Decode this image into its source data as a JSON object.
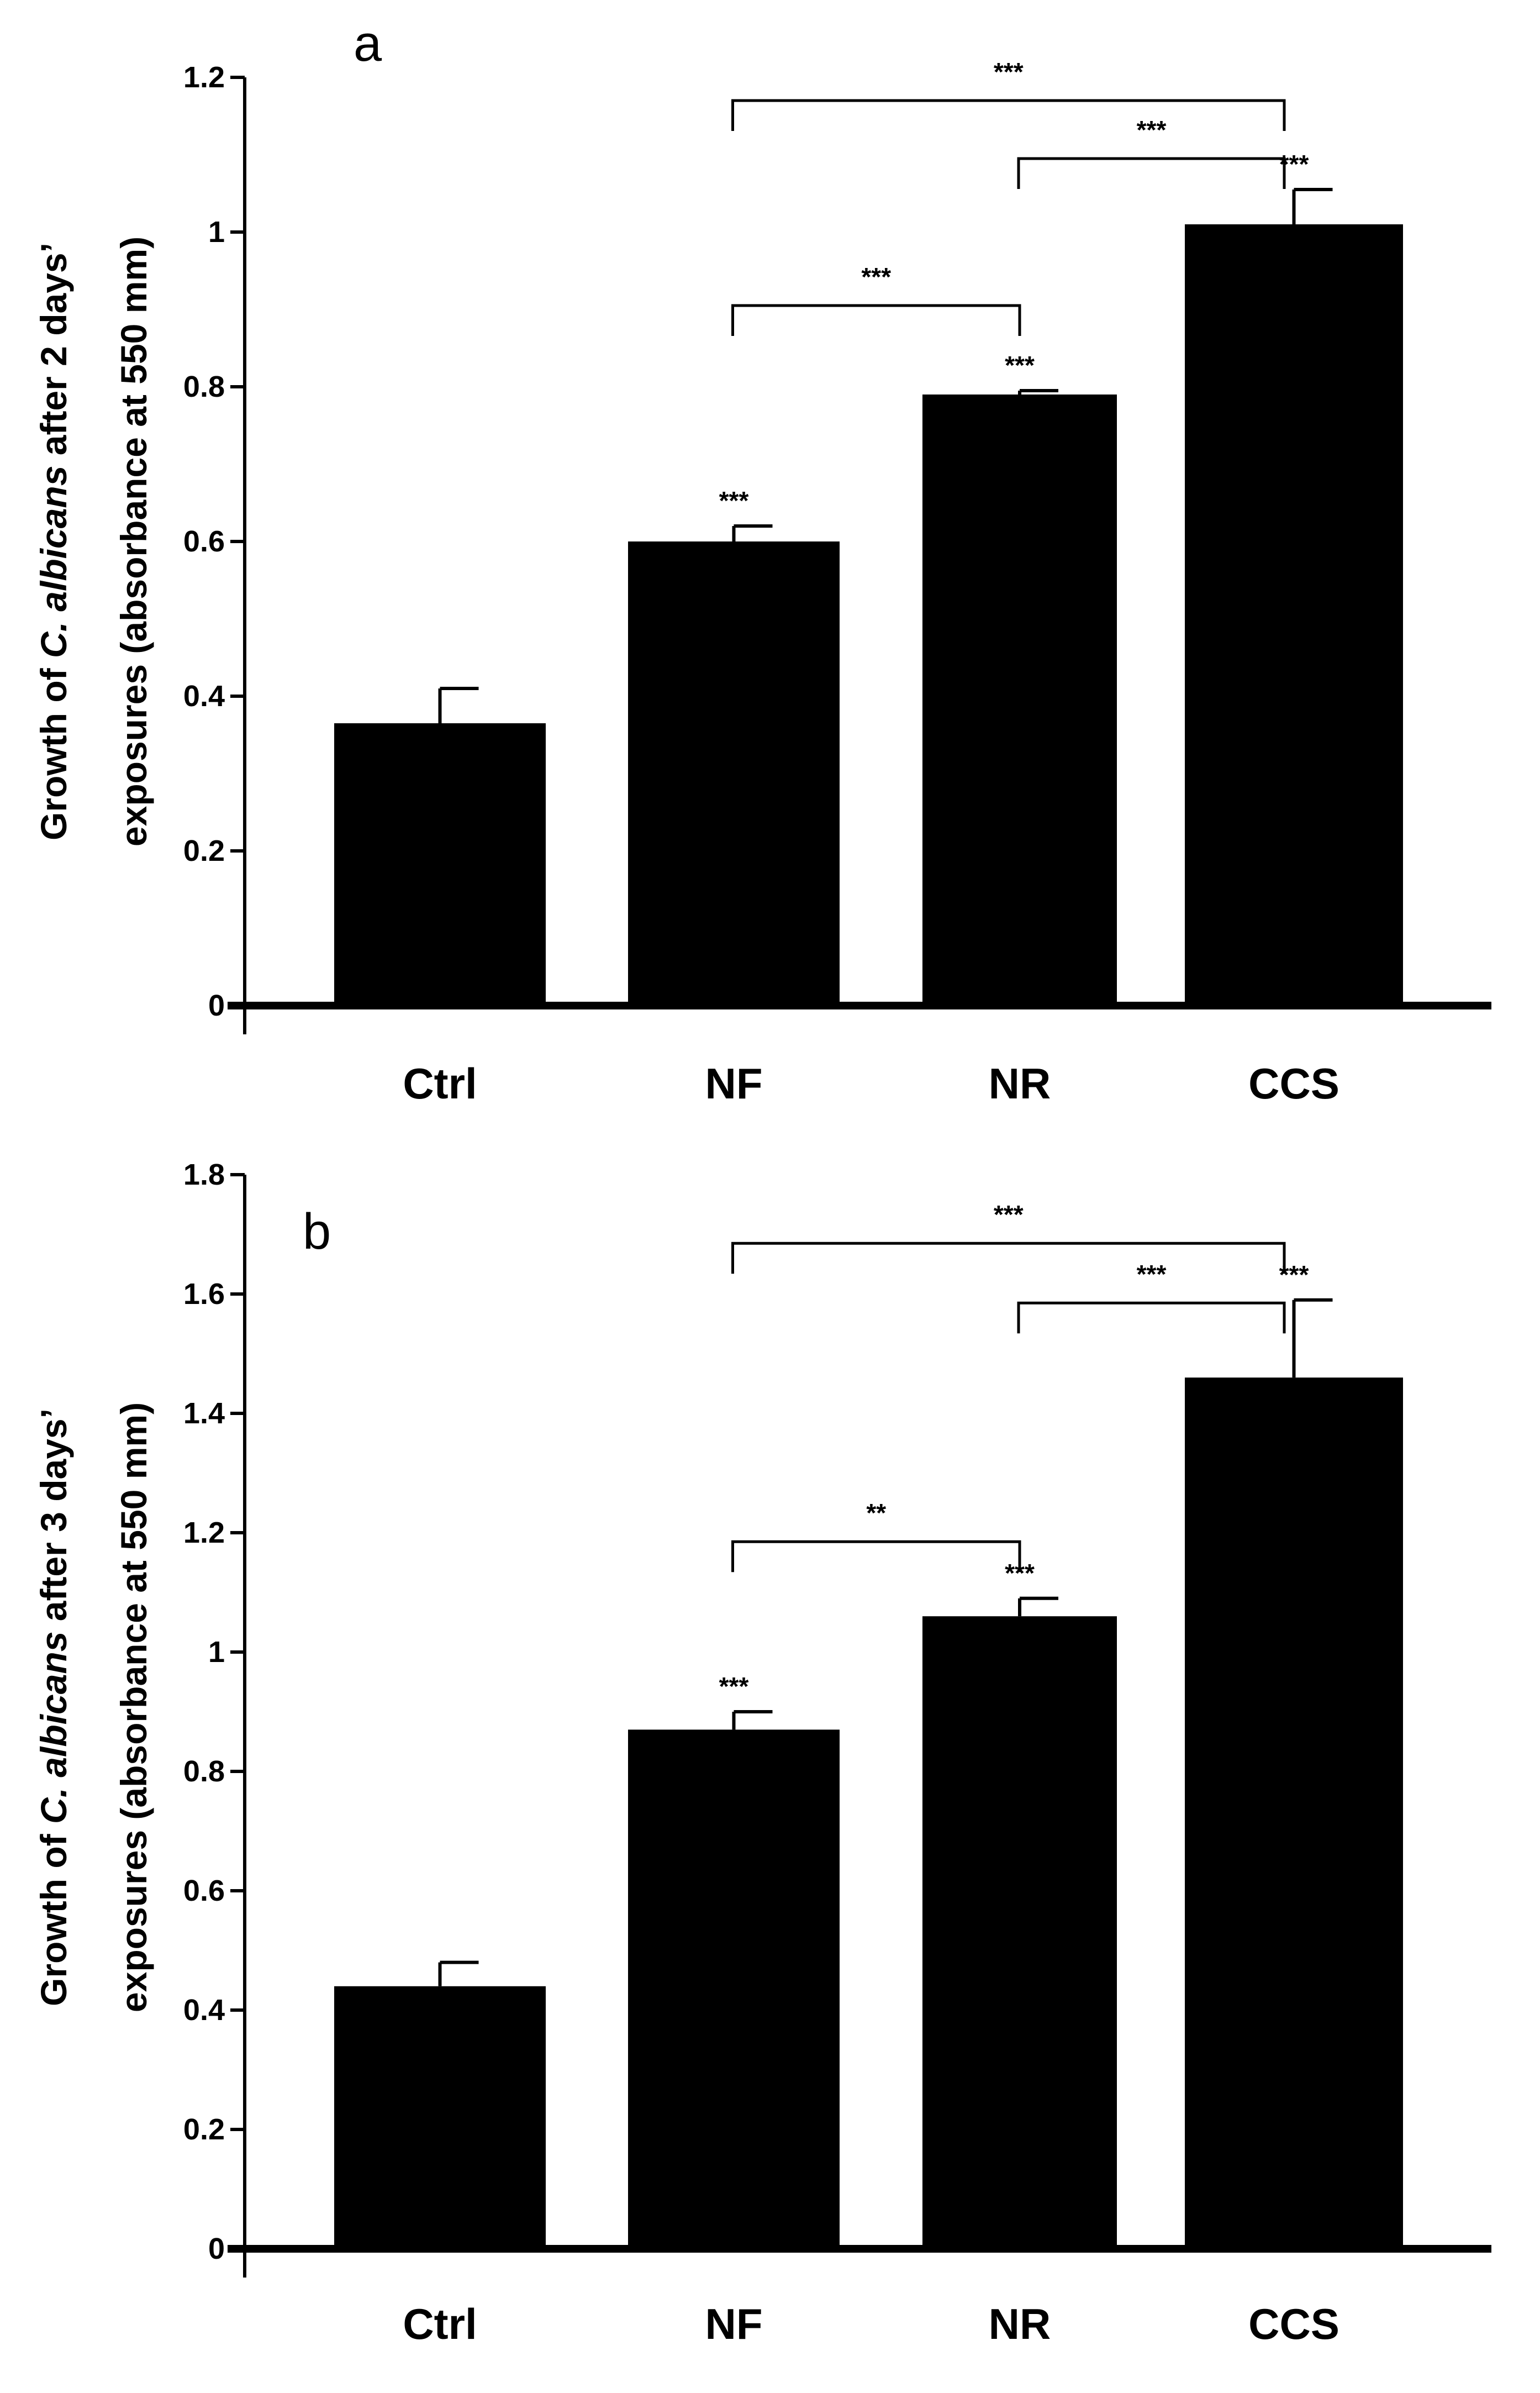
{
  "chart_data": [
    {
      "type": "bar",
      "panel_label": "a",
      "categories": [
        "Ctrl",
        "NF",
        "NR",
        "CCS"
      ],
      "values": [
        0.365,
        0.6,
        0.79,
        1.01
      ],
      "errors": [
        0.045,
        0.02,
        0.005,
        0.045
      ],
      "ylabel_line1_prefix": "Growth of ",
      "ylabel_line1_italic": "C. albicans",
      "ylabel_line1_suffix": " after 2 days’",
      "ylabel_line2": "exposures (absorbance at 550 mm)",
      "ylim": [
        0,
        1.2
      ],
      "yticks": [
        0,
        0.2,
        0.4,
        0.6,
        0.8,
        1,
        1.2
      ],
      "ytick_labels": [
        "0",
        "0.2",
        "0.4",
        "0.6",
        "0.8",
        "1",
        "1.2"
      ],
      "bar_markers": [
        {
          "category": "NF",
          "label": "***"
        },
        {
          "category": "NR",
          "label": "***"
        },
        {
          "category": "CCS",
          "label": "***"
        }
      ],
      "brackets": [
        {
          "from": "NF",
          "to": "CCS",
          "label": "***",
          "level": 1.17
        },
        {
          "from": "NR",
          "to": "CCS",
          "label": "***",
          "level": 1.095
        },
        {
          "from": "NF",
          "to": "NR",
          "label": "***",
          "level": 0.905
        }
      ],
      "bar_color": "#000000"
    },
    {
      "type": "bar",
      "panel_label": "b",
      "categories": [
        "Ctrl",
        "NF",
        "NR",
        "CCS"
      ],
      "values": [
        0.44,
        0.87,
        1.06,
        1.46
      ],
      "errors": [
        0.04,
        0.03,
        0.03,
        0.13
      ],
      "ylabel_line1_prefix": "Growth of ",
      "ylabel_line1_italic": "C. albicans",
      "ylabel_line1_suffix": " after 3 days’",
      "ylabel_line2": "exposures (absorbance at 550 mm)",
      "ylim": [
        0,
        1.8
      ],
      "yticks": [
        0,
        0.2,
        0.4,
        0.6,
        0.8,
        1,
        1.2,
        1.4,
        1.6,
        1.8
      ],
      "ytick_labels": [
        "0",
        "0.2",
        "0.4",
        "0.6",
        "0.8",
        "1",
        "1.2",
        "1.4",
        "1.6",
        "1.8"
      ],
      "bar_markers": [
        {
          "category": "NF",
          "label": "***"
        },
        {
          "category": "NR",
          "label": "***"
        },
        {
          "category": "CCS",
          "label": "***"
        }
      ],
      "brackets": [
        {
          "from": "NF",
          "to": "CCS",
          "label": "***",
          "level": 1.685
        },
        {
          "from": "NR",
          "to": "CCS",
          "label": "***",
          "level": 1.585
        },
        {
          "from": "NF",
          "to": "NR",
          "label": "**",
          "level": 1.185
        }
      ],
      "bar_color": "#000000"
    }
  ]
}
